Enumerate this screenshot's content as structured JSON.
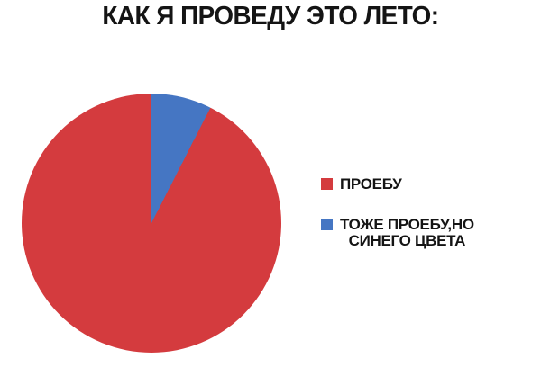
{
  "page": {
    "background": "#ffffff",
    "text_color": "#141414"
  },
  "chart_data": {
    "type": "pie",
    "title": "КАК Я ПРОВЕДУ ЭТО ЛЕТО:",
    "slices": [
      {
        "label": "ПРОЕБУ",
        "label_lines": [
          "ПРОЕБУ"
        ],
        "value": 92.5,
        "color": "#d43b3e"
      },
      {
        "label": "ТОЖЕ ПРОЕБУ,НО СИНЕГО ЦВЕТА",
        "label_lines": [
          "ТОЖЕ ПРОЕБУ,НО",
          "СИНЕГО ЦВЕТА"
        ],
        "value": 7.5,
        "color": "#4576c3"
      }
    ],
    "start_angle_deg": 0,
    "pie_draw_order": [
      1,
      0
    ],
    "legend_position": "right",
    "legend_marker": "square"
  }
}
